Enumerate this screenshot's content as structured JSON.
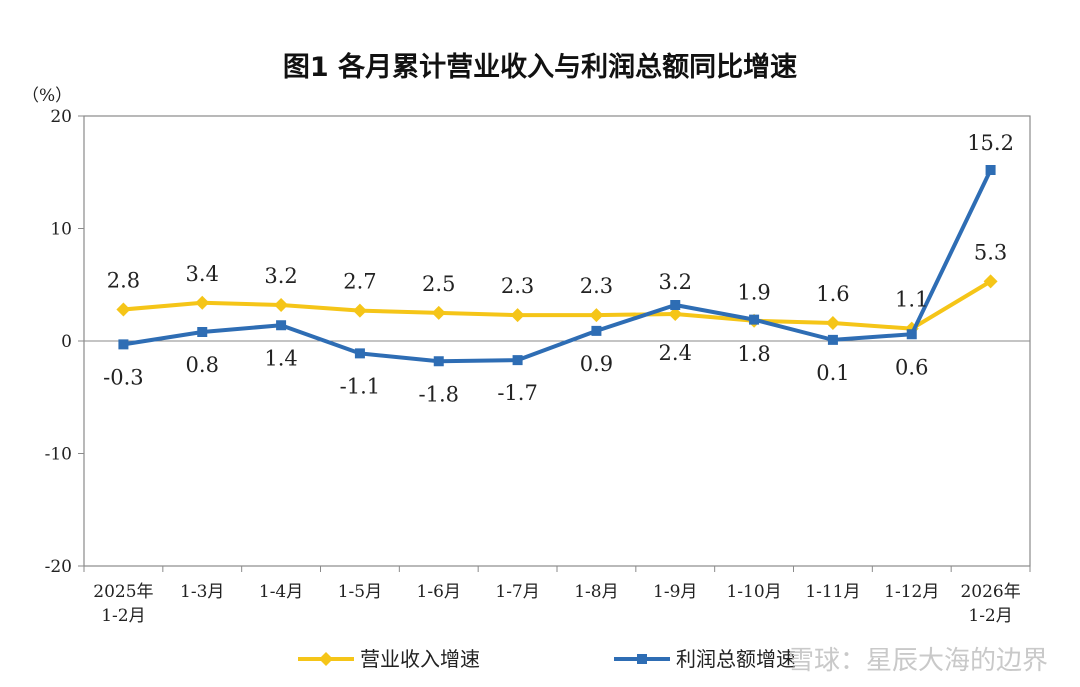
{
  "watermark": "雪球：星辰大海的边界",
  "chart_data": {
    "type": "line",
    "title": "图1  各月累计营业收入与利润总额同比增速",
    "unit_label": "（%）",
    "categories": [
      [
        "2025年",
        "1-2月"
      ],
      [
        "1-3月"
      ],
      [
        "1-4月"
      ],
      [
        "1-5月"
      ],
      [
        "1-6月"
      ],
      [
        "1-7月"
      ],
      [
        "1-8月"
      ],
      [
        "1-9月"
      ],
      [
        "1-10月"
      ],
      [
        "1-11月"
      ],
      [
        "1-12月"
      ],
      [
        "2026年",
        "1-2月"
      ]
    ],
    "ylim": [
      -20,
      20
    ],
    "yticks": [
      20,
      10,
      0,
      -10,
      -20
    ],
    "series": [
      {
        "name": "营业收入增速",
        "color": "#F5C518",
        "marker": "diamond",
        "values": [
          2.8,
          3.4,
          3.2,
          2.7,
          2.5,
          2.3,
          2.3,
          2.4,
          1.8,
          1.6,
          1.1,
          5.3
        ],
        "labels": [
          "2.8",
          "3.4",
          "3.2",
          "2.7",
          "2.5",
          "2.3",
          "2.3",
          "2.4",
          "1.8",
          "1.6",
          "1.1",
          "5.3"
        ]
      },
      {
        "name": "利润总额增速",
        "color": "#2E6DB4",
        "marker": "square",
        "values": [
          -0.3,
          0.8,
          1.4,
          -1.1,
          -1.8,
          -1.7,
          0.9,
          3.2,
          1.9,
          0.1,
          0.6,
          15.2
        ],
        "labels": [
          "-0.3",
          "0.8",
          "1.4",
          "-1.1",
          "-1.8",
          "-1.7",
          "0.9",
          "3.2",
          "1.9",
          "0.1",
          "0.6",
          "15.2"
        ]
      }
    ],
    "grid": false,
    "legend_position": "bottom"
  }
}
